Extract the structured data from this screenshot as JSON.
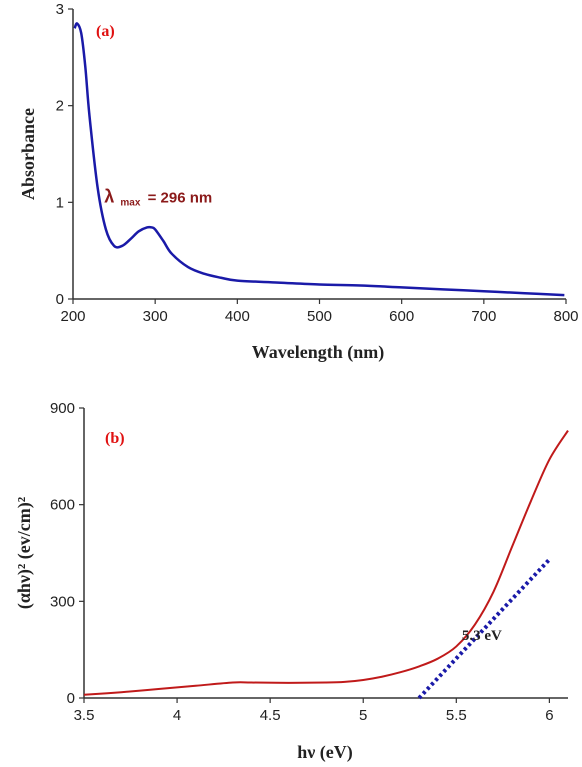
{
  "chart_data": [
    {
      "type": "line",
      "panel_label": "(a)",
      "xlabel": "Wavelength (nm)",
      "ylabel": "Absorbance",
      "xlim": [
        200,
        800
      ],
      "ylim": [
        0,
        3
      ],
      "xticks": [
        200,
        300,
        400,
        500,
        600,
        700,
        800
      ],
      "yticks": [
        0,
        1,
        2,
        3
      ],
      "annotation": {
        "symbol": "λ",
        "subscript": "max",
        "text": "= 296 nm",
        "x": 238,
        "y": 1.0
      },
      "series": [
        {
          "color": "#1a1aa8",
          "x": [
            202,
            205,
            210,
            215,
            220,
            230,
            240,
            250,
            260,
            270,
            280,
            290,
            296,
            300,
            310,
            320,
            340,
            360,
            380,
            400,
            450,
            500,
            550,
            600,
            650,
            700,
            750,
            798
          ],
          "y": [
            2.8,
            2.85,
            2.75,
            2.4,
            1.9,
            1.15,
            0.72,
            0.55,
            0.55,
            0.62,
            0.7,
            0.74,
            0.74,
            0.72,
            0.6,
            0.47,
            0.33,
            0.26,
            0.22,
            0.19,
            0.17,
            0.15,
            0.14,
            0.12,
            0.1,
            0.08,
            0.06,
            0.04
          ]
        }
      ]
    },
    {
      "type": "line",
      "panel_label": "(b)",
      "xlabel": "hν (eV)",
      "ylabel": "(αhν)² (ev/cm)²",
      "xlim": [
        3.5,
        6.1
      ],
      "ylim": [
        0,
        900
      ],
      "xticks": [
        3.5,
        4,
        4.5,
        5,
        5.5,
        6
      ],
      "xtick_labels": [
        "3.5",
        "4",
        "4.5",
        "5",
        "5.5",
        "6"
      ],
      "yticks": [
        0,
        300,
        600,
        900
      ],
      "annotation": {
        "text": "5.3 eV",
        "x": 5.53,
        "y": 180
      },
      "series": [
        {
          "color": "#c01a1a",
          "x": [
            3.5,
            3.7,
            3.9,
            4.1,
            4.3,
            4.4,
            4.6,
            4.8,
            4.9,
            5.0,
            5.1,
            5.2,
            5.3,
            5.4,
            5.5,
            5.6,
            5.7,
            5.8,
            5.9,
            6.0,
            6.1
          ],
          "y": [
            10,
            18,
            28,
            38,
            48,
            48,
            47,
            48,
            50,
            56,
            66,
            80,
            98,
            122,
            160,
            228,
            330,
            470,
            610,
            740,
            830
          ]
        }
      ],
      "fit_line": {
        "color": "#1a1aa8",
        "style": "dotted",
        "x": [
          5.3,
          6.0
        ],
        "y": [
          0,
          430
        ]
      }
    }
  ]
}
